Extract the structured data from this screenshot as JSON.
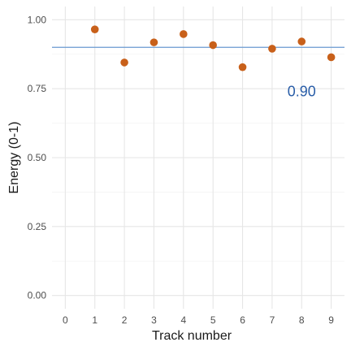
{
  "chart_data": {
    "type": "scatter",
    "xlabel": "Track number",
    "ylabel": "Energy (0-1)",
    "x_ticks": [
      0,
      1,
      2,
      3,
      4,
      5,
      6,
      7,
      8,
      9
    ],
    "y_ticks": [
      0.0,
      0.25,
      0.5,
      0.75,
      1.0
    ],
    "y_tick_labels": [
      "0.00",
      "0.25",
      "0.50",
      "0.75",
      "1.00"
    ],
    "xlim": [
      -0.45,
      9.45
    ],
    "ylim": [
      -0.048,
      1.048
    ],
    "grid": true,
    "points": [
      {
        "x": 1,
        "y": 0.965
      },
      {
        "x": 2,
        "y": 0.845
      },
      {
        "x": 3,
        "y": 0.918
      },
      {
        "x": 4,
        "y": 0.948
      },
      {
        "x": 5,
        "y": 0.908
      },
      {
        "x": 6,
        "y": 0.828
      },
      {
        "x": 7,
        "y": 0.895
      },
      {
        "x": 8,
        "y": 0.921
      },
      {
        "x": 9,
        "y": 0.864
      }
    ],
    "point_color": "#c8601a",
    "reference_line": {
      "y": 0.9,
      "color": "#6a9ad0"
    },
    "annotation": {
      "text": "0.90",
      "x": 8,
      "y": 0.74,
      "color": "#2a5ea8"
    }
  }
}
